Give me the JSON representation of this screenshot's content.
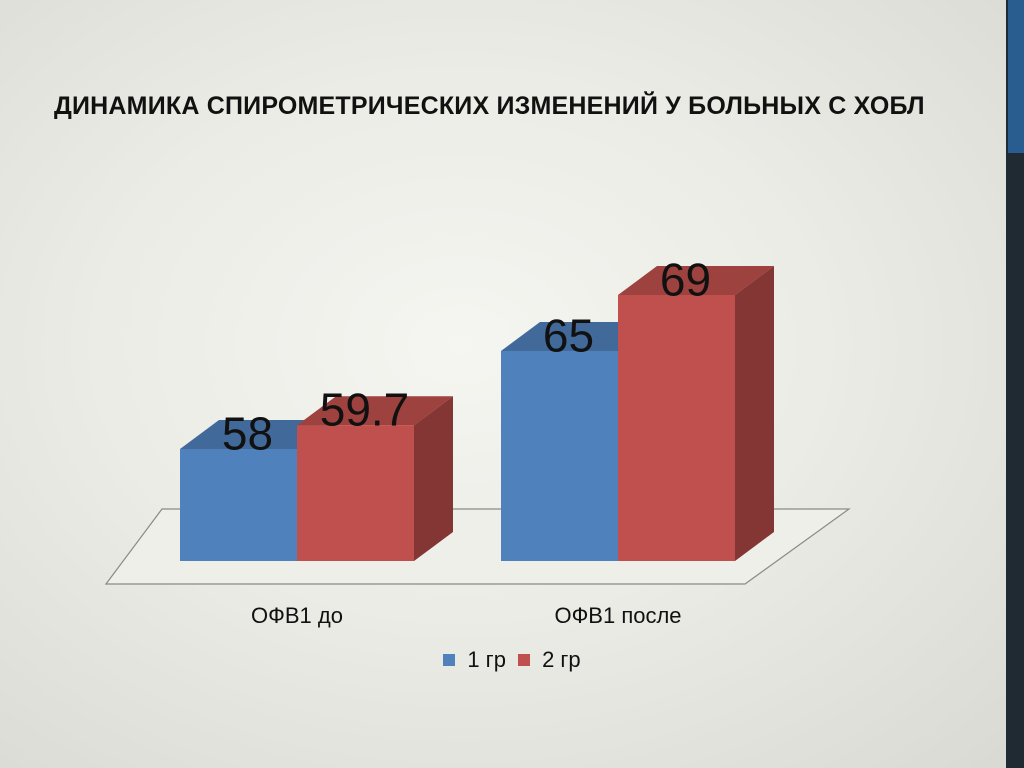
{
  "title": "Динамика спирометрических изменений у больных с ХОБЛ",
  "chart_data": {
    "type": "bar",
    "title": "Динамика спирометрических изменений у больных с ХОБЛ",
    "categories": [
      "ОФВ1 до",
      "ОФВ1 после"
    ],
    "series": [
      {
        "name": "1 гр",
        "values": [
          58,
          65
        ],
        "color": "#4f81bd"
      },
      {
        "name": "2 гр",
        "values": [
          59.7,
          69
        ],
        "color": "#c0504d"
      }
    ],
    "value_labels": [
      [
        "58",
        "65"
      ],
      [
        "59.7",
        "69"
      ]
    ],
    "xlabel": "",
    "ylabel": "",
    "ylim": [
      50,
      70
    ],
    "grid": false,
    "legend": "bottom",
    "style": "3d-clustered-column"
  }
}
